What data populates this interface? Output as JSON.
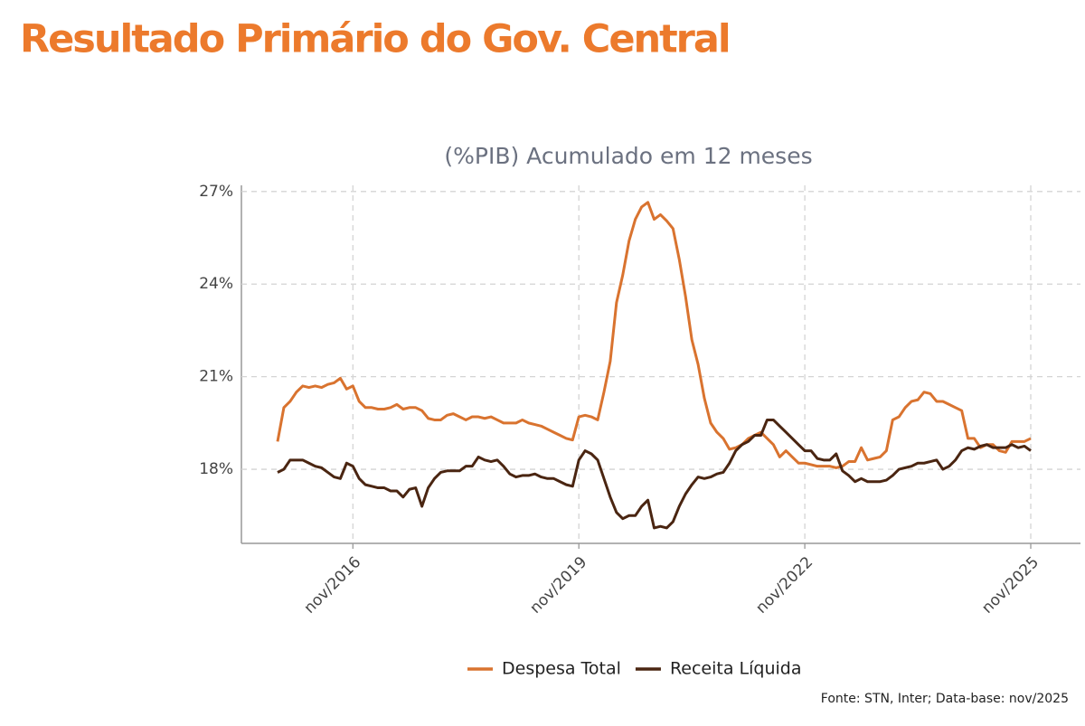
{
  "chart_data": {
    "type": "line",
    "title": "Resultado Primário do Gov. Central",
    "subtitle": "(%PIB) Acumulado em 12 meses",
    "source": "Fonte: STN, Inter; Data-base: nov/2025",
    "x": [
      "nov/2015",
      "dez/2015",
      "jan/2016",
      "fev/2016",
      "mar/2016",
      "abr/2016",
      "mai/2016",
      "jun/2016",
      "jul/2016",
      "ago/2016",
      "set/2016",
      "out/2016",
      "nov/2016",
      "dez/2016",
      "jan/2017",
      "fev/2017",
      "mar/2017",
      "abr/2017",
      "mai/2017",
      "jun/2017",
      "jul/2017",
      "ago/2017",
      "set/2017",
      "out/2017",
      "nov/2017",
      "dez/2017",
      "jan/2018",
      "fev/2018",
      "mar/2018",
      "abr/2018",
      "mai/2018",
      "jun/2018",
      "jul/2018",
      "ago/2018",
      "set/2018",
      "out/2018",
      "nov/2018",
      "dez/2018",
      "jan/2019",
      "fev/2019",
      "mar/2019",
      "abr/2019",
      "mai/2019",
      "jun/2019",
      "jul/2019",
      "ago/2019",
      "set/2019",
      "out/2019",
      "nov/2019",
      "dez/2019",
      "jan/2020",
      "fev/2020",
      "mar/2020",
      "abr/2020",
      "mai/2020",
      "jun/2020",
      "jul/2020",
      "ago/2020",
      "set/2020",
      "out/2020",
      "nov/2020",
      "dez/2020",
      "jan/2021",
      "fev/2021",
      "mar/2021",
      "abr/2021",
      "mai/2021",
      "jun/2021",
      "jul/2021",
      "ago/2021",
      "set/2021",
      "out/2021",
      "nov/2021",
      "dez/2021",
      "jan/2022",
      "fev/2022",
      "mar/2022",
      "abr/2022",
      "mai/2022",
      "jun/2022",
      "jul/2022",
      "ago/2022",
      "set/2022",
      "out/2022",
      "nov/2022",
      "dez/2022",
      "jan/2023",
      "fev/2023",
      "mar/2023",
      "abr/2023",
      "mai/2023",
      "jun/2023",
      "jul/2023",
      "ago/2023",
      "set/2023",
      "out/2023",
      "nov/2023",
      "dez/2023",
      "jan/2024",
      "fev/2024",
      "mar/2024",
      "abr/2024",
      "mai/2024",
      "jun/2024",
      "jul/2024",
      "ago/2024",
      "set/2024",
      "out/2024",
      "nov/2024",
      "dez/2024",
      "jan/2025",
      "fev/2025",
      "mar/2025",
      "abr/2025",
      "mai/2025",
      "jun/2025",
      "jul/2025",
      "ago/2025",
      "set/2025",
      "out/2025",
      "nov/2025"
    ],
    "xticks": [
      "nov/2016",
      "nov/2019",
      "nov/2022",
      "nov/2025"
    ],
    "ylim": [
      15.6,
      27.2
    ],
    "yticks": [
      {
        "value": 18,
        "label": "18%"
      },
      {
        "value": 21,
        "label": "21%"
      },
      {
        "value": 24,
        "label": "24%"
      },
      {
        "value": 27,
        "label": "27%"
      }
    ],
    "grid": true,
    "legend": "bottom",
    "series": [
      {
        "name": "Despesa Total",
        "color": "#d9732f",
        "values": [
          18.9,
          20.0,
          20.2,
          20.5,
          20.7,
          20.65,
          20.7,
          20.65,
          20.75,
          20.8,
          20.95,
          20.6,
          20.7,
          20.2,
          20.0,
          20.0,
          19.95,
          19.95,
          20.0,
          20.1,
          19.95,
          20.0,
          20.0,
          19.9,
          19.65,
          19.6,
          19.6,
          19.75,
          19.8,
          19.7,
          19.6,
          19.7,
          19.7,
          19.65,
          19.7,
          19.6,
          19.5,
          19.5,
          19.5,
          19.6,
          19.5,
          19.45,
          19.4,
          19.3,
          19.2,
          19.1,
          19.0,
          18.95,
          19.7,
          19.75,
          19.7,
          19.6,
          20.5,
          21.5,
          23.4,
          24.3,
          25.4,
          26.1,
          26.5,
          26.65,
          26.1,
          26.25,
          26.05,
          25.8,
          24.8,
          23.6,
          22.2,
          21.4,
          20.3,
          19.5,
          19.2,
          19.0,
          18.65,
          18.7,
          18.8,
          19.0,
          19.1,
          19.2,
          19.0,
          18.8,
          18.4,
          18.6,
          18.4,
          18.2,
          18.2,
          18.15,
          18.1,
          18.1,
          18.1,
          18.05,
          18.1,
          18.25,
          18.25,
          18.7,
          18.3,
          18.35,
          18.4,
          18.6,
          19.6,
          19.7,
          20.0,
          20.2,
          20.25,
          20.5,
          20.45,
          20.2,
          20.2,
          20.1,
          20.0,
          19.9,
          19.0,
          19.0,
          18.7,
          18.8,
          18.8,
          18.6,
          18.55,
          18.9,
          18.9,
          18.9,
          19.0
        ]
      },
      {
        "name": "Receita Líquida",
        "color": "#4a2511",
        "values": [
          17.9,
          18.0,
          18.3,
          18.3,
          18.3,
          18.2,
          18.1,
          18.05,
          17.9,
          17.75,
          17.7,
          18.2,
          18.1,
          17.7,
          17.5,
          17.45,
          17.4,
          17.4,
          17.3,
          17.3,
          17.1,
          17.35,
          17.4,
          16.8,
          17.4,
          17.7,
          17.9,
          17.95,
          17.95,
          17.95,
          18.1,
          18.1,
          18.4,
          18.3,
          18.25,
          18.3,
          18.1,
          17.85,
          17.75,
          17.8,
          17.8,
          17.85,
          17.75,
          17.7,
          17.7,
          17.6,
          17.5,
          17.45,
          18.3,
          18.6,
          18.5,
          18.3,
          17.7,
          17.1,
          16.6,
          16.4,
          16.5,
          16.5,
          16.8,
          17.0,
          16.1,
          16.15,
          16.1,
          16.3,
          16.8,
          17.2,
          17.5,
          17.75,
          17.7,
          17.75,
          17.85,
          17.9,
          18.2,
          18.6,
          18.8,
          18.9,
          19.1,
          19.1,
          19.6,
          19.6,
          19.4,
          19.2,
          19.0,
          18.8,
          18.6,
          18.6,
          18.35,
          18.3,
          18.3,
          18.5,
          17.95,
          17.8,
          17.6,
          17.7,
          17.6,
          17.6,
          17.6,
          17.65,
          17.8,
          18.0,
          18.05,
          18.1,
          18.2,
          18.2,
          18.25,
          18.3,
          18.0,
          18.1,
          18.3,
          18.6,
          18.7,
          18.65,
          18.75,
          18.8,
          18.7,
          18.7,
          18.7,
          18.8,
          18.7,
          18.75,
          18.6
        ]
      }
    ]
  }
}
